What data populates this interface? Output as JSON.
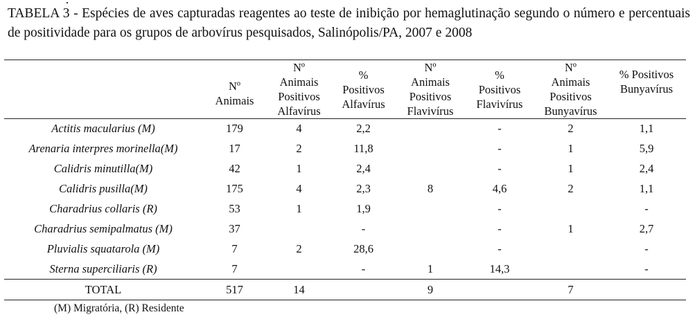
{
  "title": "TABELA 3 - Espécies de aves capturadas reagentes ao teste de inibição por hemaglutinação segundo o número e percentuais de positividade para os grupos de arbovírus pesquisados, Salinópolis/PA, 2007 e 2008",
  "headers": [
    "",
    "Nº Animais",
    "Nº Animais Positivos Alfavírus",
    "% Positivos Alfavírus",
    "Nº Animais Positivos Flavivírus",
    "% Positivos Flavivírus",
    "Nº Animais Positivos Bunyavírus",
    "% Positivos Bunyavírus"
  ],
  "rows": [
    [
      "Actitis macularius (M)",
      "179",
      "4",
      "2,2",
      "",
      "-",
      "2",
      "1,1"
    ],
    [
      "Arenaria interpres morinella(M)",
      "17",
      "2",
      "11,8",
      "",
      "-",
      "1",
      "5,9"
    ],
    [
      "Calidris minutilla(M)",
      "42",
      "1",
      "2,4",
      "",
      "-",
      "1",
      "2,4"
    ],
    [
      "Calidris pusilla(M)",
      "175",
      "4",
      "2,3",
      "8",
      "4,6",
      "2",
      "1,1"
    ],
    [
      "Charadrius collaris (R)",
      "53",
      "1",
      "1,9",
      "",
      "-",
      "",
      "-"
    ],
    [
      "Charadrius semipalmatus (M)",
      "37",
      "",
      "-",
      "",
      "-",
      "1",
      "2,7"
    ],
    [
      "Pluvialis squatarola (M)",
      "7",
      "2",
      "28,6",
      "",
      "-",
      "",
      "-"
    ],
    [
      "Sterna superciliaris (R)",
      "7",
      "",
      "-",
      "1",
      "14,3",
      "",
      "-"
    ]
  ],
  "total": [
    "TOTAL",
    "517",
    "14",
    "",
    "9",
    "",
    "7",
    ""
  ],
  "footnote": "(M) Migratória, (R) Residente"
}
